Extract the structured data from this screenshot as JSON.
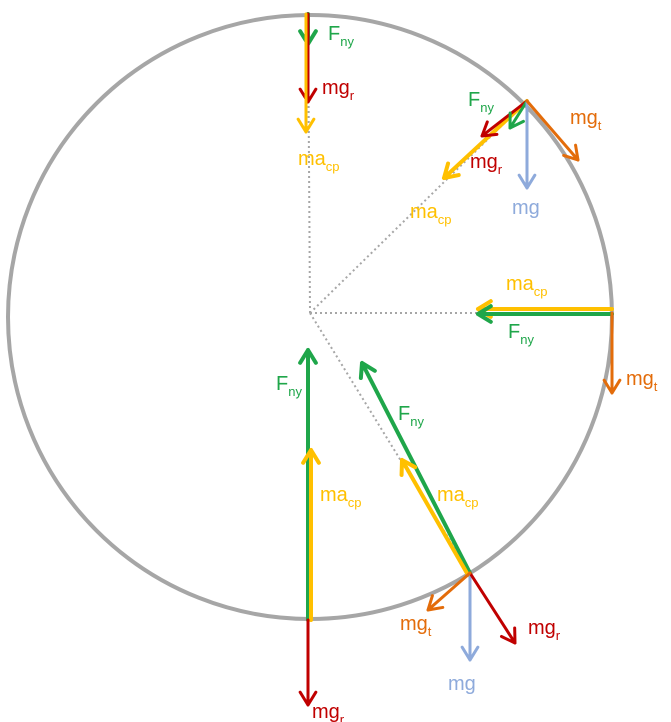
{
  "labels": [
    {
      "text": "F",
      "sub": "ny"
    },
    {
      "text": "mg",
      "sub": "r"
    },
    {
      "text": "ma",
      "sub": "cp"
    },
    {
      "text": "F",
      "sub": "ny"
    },
    {
      "text": "mg",
      "sub": "r"
    },
    {
      "text": "mg",
      "sub": "t"
    },
    {
      "text": "mg"
    },
    {
      "text": "ma",
      "sub": "cp"
    },
    {
      "text": "ma",
      "sub": "cp"
    },
    {
      "text": "F",
      "sub": "ny"
    },
    {
      "text": "mg",
      "sub": "t"
    },
    {
      "text": "F",
      "sub": "ny"
    },
    {
      "text": "ma",
      "sub": "cp"
    },
    {
      "text": "F",
      "sub": "ny"
    },
    {
      "text": "ma",
      "sub": "cp"
    },
    {
      "text": "mg",
      "sub": "t"
    },
    {
      "text": "mg"
    },
    {
      "text": "mg",
      "sub": "r"
    },
    {
      "text": "mg",
      "sub": "r"
    }
  ]
}
